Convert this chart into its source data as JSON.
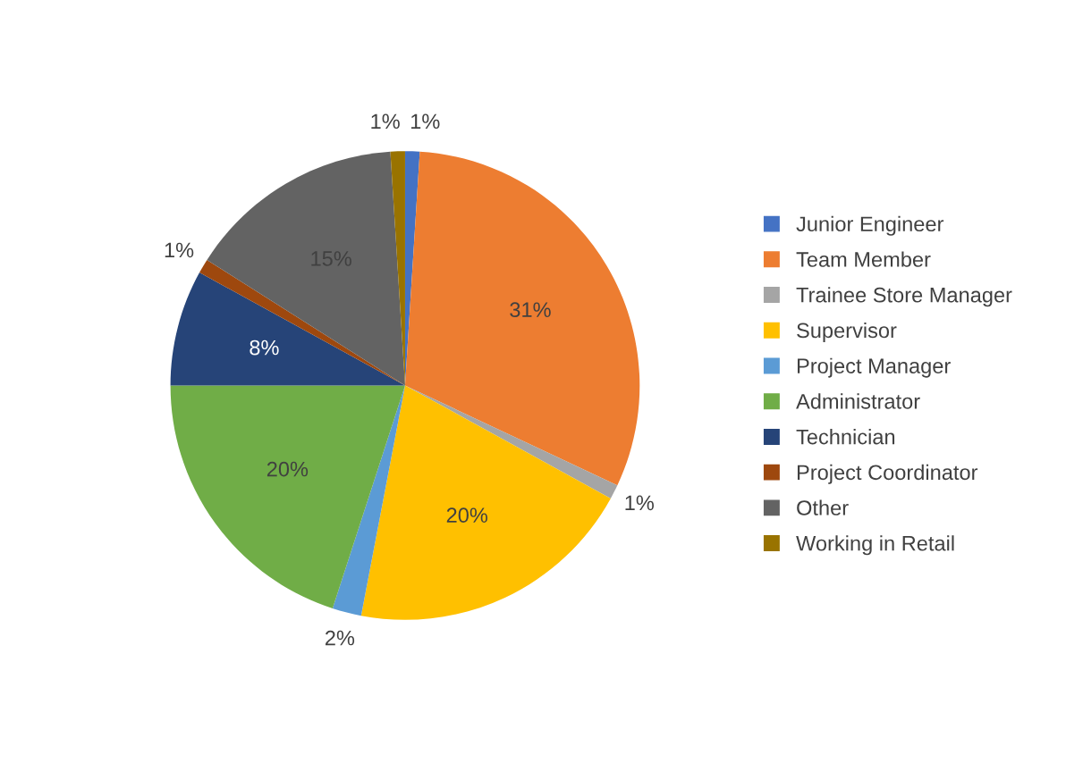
{
  "chart_data": {
    "type": "pie",
    "categories": [
      "Junior Engineer",
      "Team Member",
      "Trainee Store Manager",
      "Supervisor",
      "Project Manager",
      "Administrator",
      "Technician",
      "Project Coordinator",
      "Other",
      "Working in Retail"
    ],
    "values": [
      1,
      31,
      1,
      20,
      2,
      20,
      8,
      1,
      15,
      1
    ],
    "value_labels": [
      "1%",
      "31%",
      "1%",
      "20%",
      "2%",
      "20%",
      "8%",
      "1%",
      "15%",
      "1%"
    ],
    "colors": [
      "#4472c4",
      "#ed7d31",
      "#a5a5a5",
      "#ffc000",
      "#5b9bd5",
      "#70ad47",
      "#264478",
      "#9e480e",
      "#636363",
      "#997300"
    ],
    "legend": "right"
  }
}
